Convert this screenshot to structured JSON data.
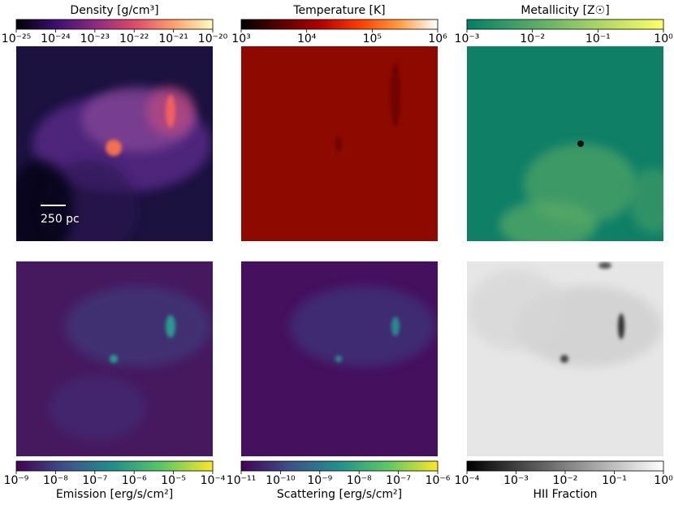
{
  "chart_data": [
    {
      "type": "image",
      "colorbar_label": "Density [g/cm³]",
      "colormap": "magma",
      "colorbar_position": "top",
      "log_scale": true,
      "clim": [
        1e-25,
        1e-20
      ],
      "cticks": [
        {
          "value": 1e-25,
          "label": "10⁻²⁵"
        },
        {
          "value": 1e-24,
          "label": "10⁻²⁴"
        },
        {
          "value": 1e-23,
          "label": "10⁻²³"
        },
        {
          "value": 1e-22,
          "label": "10⁻²²"
        },
        {
          "value": 1e-21,
          "label": "10⁻²¹"
        },
        {
          "value": 1e-20,
          "label": "10⁻²⁰"
        }
      ],
      "annotation": "250 pc"
    },
    {
      "type": "image",
      "colorbar_label": "Temperature [K]",
      "colormap": "heat",
      "colorbar_position": "top",
      "log_scale": true,
      "clim": [
        1000,
        1000000
      ],
      "cticks": [
        {
          "value": 1000,
          "label": "10³"
        },
        {
          "value": 10000,
          "label": "10⁴"
        },
        {
          "value": 100000,
          "label": "10⁵"
        },
        {
          "value": 1000000,
          "label": "10⁶"
        }
      ]
    },
    {
      "type": "image",
      "colorbar_label": "Metallicity [Z☉]",
      "colormap": "summer",
      "colorbar_position": "top",
      "log_scale": true,
      "clim": [
        0.001,
        1
      ],
      "cticks": [
        {
          "value": 0.001,
          "label": "10⁻³"
        },
        {
          "value": 0.01,
          "label": "10⁻²"
        },
        {
          "value": 0.1,
          "label": "10⁻¹"
        },
        {
          "value": 1,
          "label": "10⁰"
        }
      ]
    },
    {
      "type": "image",
      "colorbar_label": "Emission [erg/s/cm²]",
      "colormap": "viridis",
      "colorbar_position": "bottom",
      "log_scale": true,
      "clim": [
        1e-09,
        0.0001
      ],
      "cticks": [
        {
          "value": 1e-09,
          "label": "10⁻⁹"
        },
        {
          "value": 1e-08,
          "label": "10⁻⁸"
        },
        {
          "value": 1e-07,
          "label": "10⁻⁷"
        },
        {
          "value": 1e-06,
          "label": "10⁻⁶"
        },
        {
          "value": 1e-05,
          "label": "10⁻⁵"
        },
        {
          "value": 0.0001,
          "label": "10⁻⁴"
        }
      ]
    },
    {
      "type": "image",
      "colorbar_label": "Scattering [erg/s/cm²]",
      "colormap": "viridis",
      "colorbar_position": "bottom",
      "log_scale": true,
      "clim": [
        1e-11,
        1e-06
      ],
      "cticks": [
        {
          "value": 1e-11,
          "label": "10⁻¹¹"
        },
        {
          "value": 1e-10,
          "label": "10⁻¹⁰"
        },
        {
          "value": 1e-09,
          "label": "10⁻⁹"
        },
        {
          "value": 1e-08,
          "label": "10⁻⁸"
        },
        {
          "value": 1e-07,
          "label": "10⁻⁷"
        },
        {
          "value": 1e-06,
          "label": "10⁻⁶"
        }
      ]
    },
    {
      "type": "image",
      "colorbar_label": "HII Fraction",
      "colormap": "gray",
      "colorbar_position": "bottom",
      "log_scale": true,
      "clim": [
        0.0001,
        1
      ],
      "cticks": [
        {
          "value": 0.0001,
          "label": "10⁻⁴"
        },
        {
          "value": 0.001,
          "label": "10⁻³"
        },
        {
          "value": 0.01,
          "label": "10⁻²"
        },
        {
          "value": 0.1,
          "label": "10⁻¹"
        },
        {
          "value": 1,
          "label": "10⁰"
        }
      ]
    }
  ]
}
